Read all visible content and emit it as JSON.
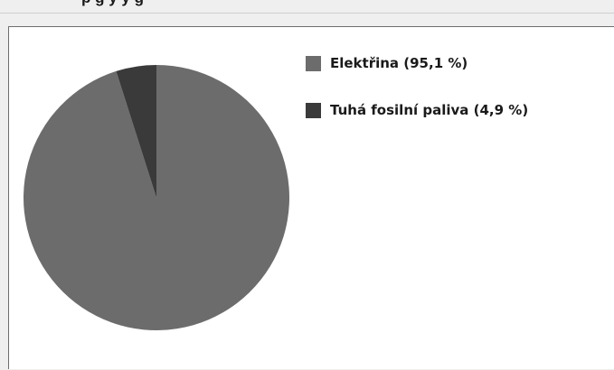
{
  "title_fragment": "p                    g                              y     y          g",
  "chart_data": {
    "type": "pie",
    "title": "",
    "slices": [
      {
        "label": "Elektřina (95,1 %)",
        "value": 95.1,
        "color": "#6c6c6c"
      },
      {
        "label": "Tuhá fosilní paliva (4,9 %)",
        "value": 4.9,
        "color": "#3a3a3a"
      }
    ],
    "start_angle_deg": 0,
    "direction": "clockwise",
    "legend_position": "right"
  }
}
